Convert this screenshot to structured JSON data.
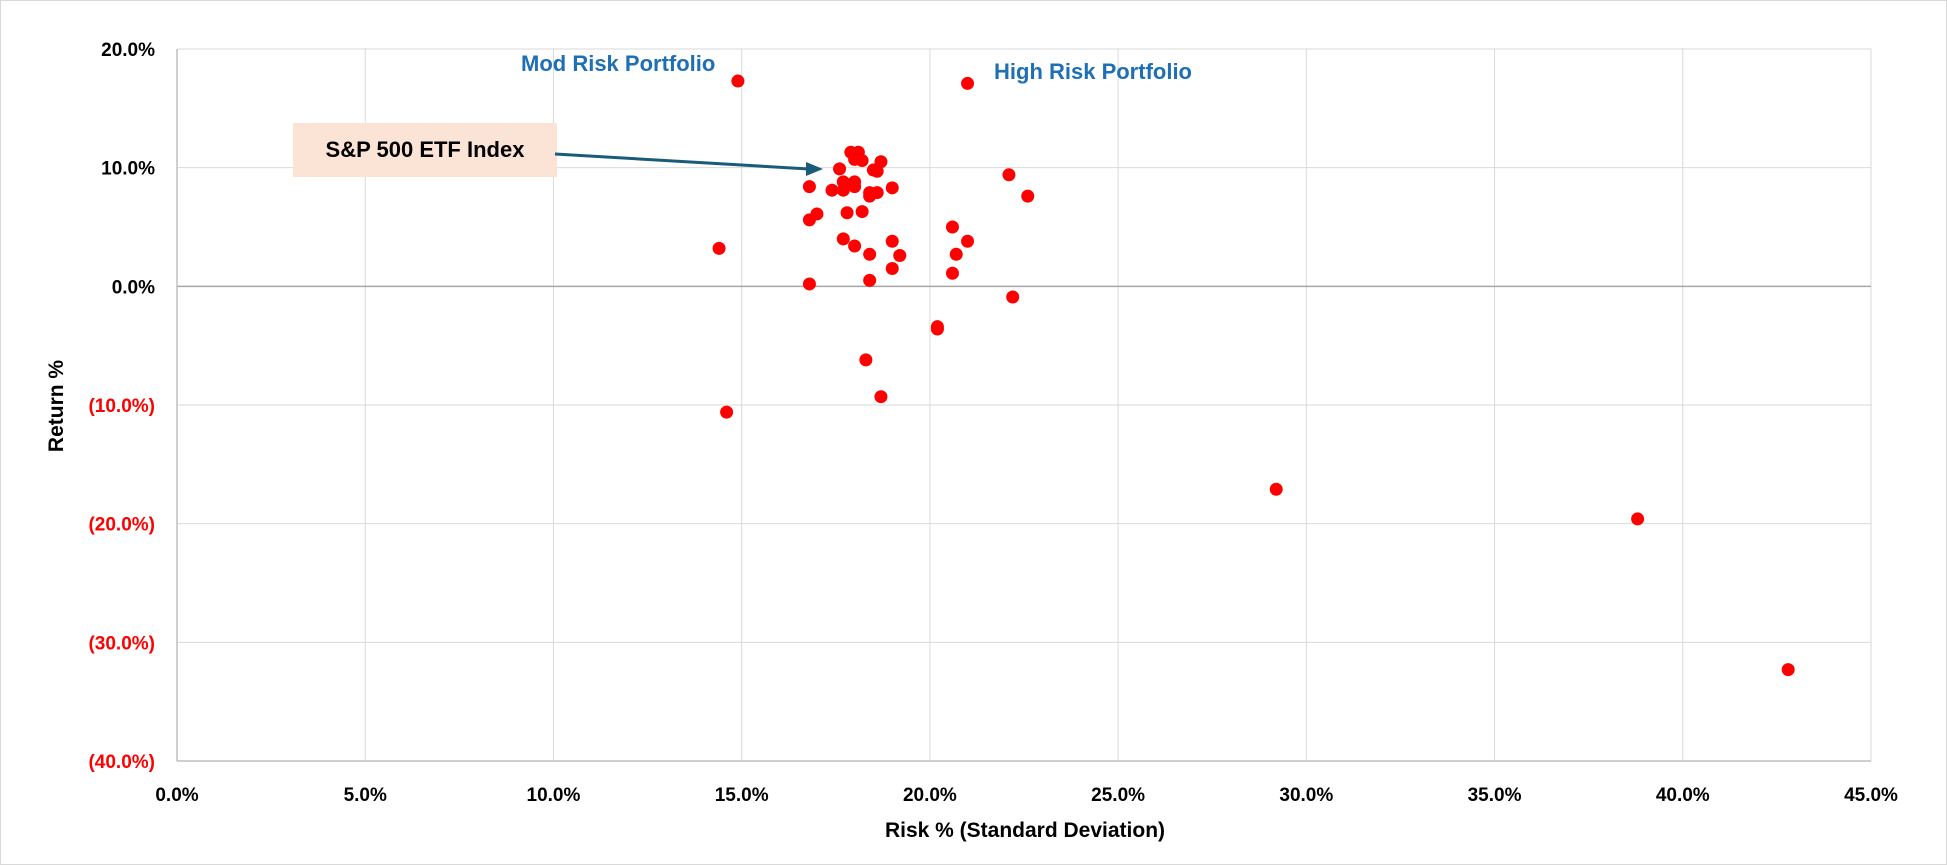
{
  "chart_data": {
    "type": "scatter",
    "xlabel": "Risk % (Standard Deviation)",
    "ylabel": "Return %",
    "xlim": [
      0,
      45
    ],
    "ylim": [
      -40,
      20
    ],
    "grid": true,
    "x_ticks": [
      "0.0%",
      "5.0%",
      "10.0%",
      "15.0%",
      "20.0%",
      "25.0%",
      "30.0%",
      "35.0%",
      "40.0%",
      "45.0%"
    ],
    "y_ticks": [
      {
        "label": "20.0%",
        "value": 20,
        "color": "#000000"
      },
      {
        "label": "10.0%",
        "value": 10,
        "color": "#000000"
      },
      {
        "label": "0.0%",
        "value": 0,
        "color": "#000000"
      },
      {
        "label": "(10.0%)",
        "value": -10,
        "color": "#ff0000"
      },
      {
        "label": "(20.0%)",
        "value": -20,
        "color": "#ff0000"
      },
      {
        "label": "(30.0%)",
        "value": -30,
        "color": "#ff0000"
      },
      {
        "label": "(40.0%)",
        "value": -40,
        "color": "#ff0000"
      }
    ],
    "marker_color": "#ff0000",
    "points": [
      {
        "x": 14.9,
        "y": 17.3
      },
      {
        "x": 21.0,
        "y": 17.1
      },
      {
        "x": 14.4,
        "y": 3.2
      },
      {
        "x": 14.6,
        "y": -10.6
      },
      {
        "x": 16.8,
        "y": 0.2
      },
      {
        "x": 16.8,
        "y": 8.4
      },
      {
        "x": 16.8,
        "y": 5.6
      },
      {
        "x": 17.0,
        "y": 6.1
      },
      {
        "x": 17.4,
        "y": 8.1
      },
      {
        "x": 17.6,
        "y": 9.9
      },
      {
        "x": 17.7,
        "y": 8.1
      },
      {
        "x": 17.7,
        "y": 8.8
      },
      {
        "x": 17.7,
        "y": 4.0
      },
      {
        "x": 17.8,
        "y": 6.2
      },
      {
        "x": 17.9,
        "y": 11.3
      },
      {
        "x": 18.0,
        "y": 10.7
      },
      {
        "x": 18.0,
        "y": 8.8
      },
      {
        "x": 18.0,
        "y": 8.4
      },
      {
        "x": 18.0,
        "y": 3.4
      },
      {
        "x": 18.1,
        "y": 11.3
      },
      {
        "x": 18.2,
        "y": 10.6
      },
      {
        "x": 18.2,
        "y": 6.3
      },
      {
        "x": 18.3,
        "y": -6.2
      },
      {
        "x": 18.4,
        "y": 7.9
      },
      {
        "x": 18.4,
        "y": 7.6
      },
      {
        "x": 18.4,
        "y": 2.7
      },
      {
        "x": 18.4,
        "y": 0.5
      },
      {
        "x": 18.5,
        "y": 9.8
      },
      {
        "x": 18.6,
        "y": 7.9
      },
      {
        "x": 18.6,
        "y": 9.7
      },
      {
        "x": 18.7,
        "y": 10.5
      },
      {
        "x": 18.7,
        "y": -9.3
      },
      {
        "x": 19.0,
        "y": 8.3
      },
      {
        "x": 19.0,
        "y": 3.8
      },
      {
        "x": 19.0,
        "y": 1.5
      },
      {
        "x": 19.2,
        "y": 2.6
      },
      {
        "x": 20.2,
        "y": -3.4
      },
      {
        "x": 20.2,
        "y": -3.6
      },
      {
        "x": 20.6,
        "y": 5.0
      },
      {
        "x": 20.6,
        "y": 1.1
      },
      {
        "x": 20.7,
        "y": 2.7
      },
      {
        "x": 21.0,
        "y": 3.8
      },
      {
        "x": 22.1,
        "y": 9.4
      },
      {
        "x": 22.2,
        "y": -0.9
      },
      {
        "x": 22.6,
        "y": 7.6
      },
      {
        "x": 29.2,
        "y": -17.1
      },
      {
        "x": 38.8,
        "y": -19.6
      },
      {
        "x": 42.8,
        "y": -32.3
      }
    ],
    "annotations": [
      {
        "text": "Mod Risk Portfolio",
        "color": "#1f6fb4"
      },
      {
        "text": "High Risk Portfolio",
        "color": "#1f6fb4"
      },
      {
        "text": "S&P 500 ETF Index",
        "color": "#000000",
        "box_fill": "#fbe3d6",
        "arrow_color": "#1a5b7a"
      }
    ]
  }
}
